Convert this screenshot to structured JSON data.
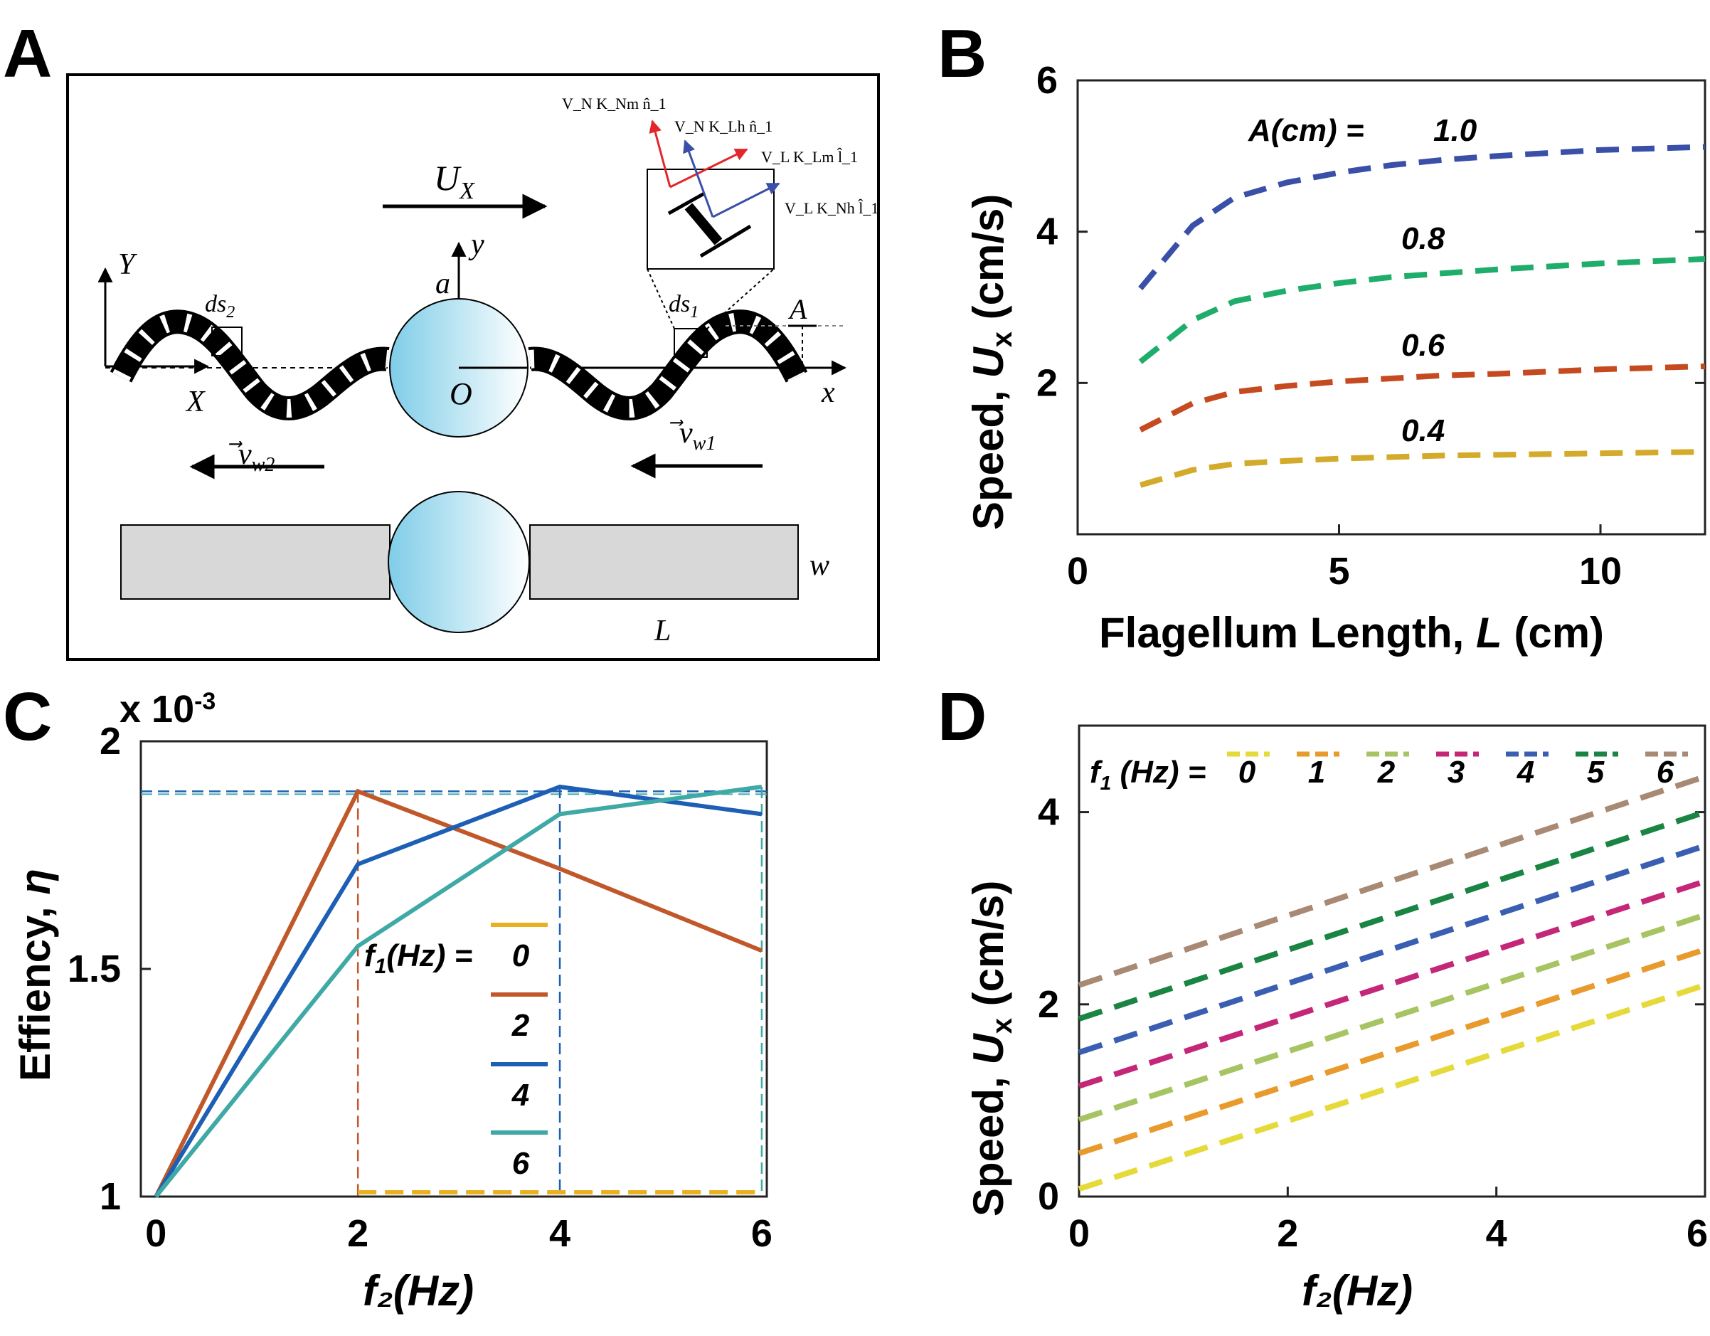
{
  "panel_labels": {
    "a": "A",
    "b": "B",
    "c": "C",
    "d": "D"
  },
  "diagram": {
    "velocity": "U",
    "velocity_sub": "X",
    "frame_X": "X",
    "frame_Y": "Y",
    "frame_x": "x",
    "frame_y": "y",
    "origin": "O",
    "radius": "a",
    "amplitude": "A",
    "ds1": "ds",
    "ds1_sub": "1",
    "ds2": "ds",
    "ds2_sub": "2",
    "vw1": "v",
    "vw1_sub": "w1",
    "vw2": "v",
    "vw2_sub": "w2",
    "width": "w",
    "length": "L",
    "vec1": "V_N K_Nm n̂_1",
    "vec2": "V_N K_Lh n̂_1",
    "vec3": "V_L K_Lm l̂_1",
    "vec4": "V_L K_Nh l̂_1",
    "colors": {
      "body": "#7fcde8",
      "rect": "#d8d8d8",
      "red": "#e3262b",
      "blue": "#3b4fa8"
    }
  },
  "chart_data": [
    {
      "id": "B",
      "type": "line",
      "xlabel": "Flagellum Length, ",
      "xlabel_var": "L",
      "xlabel_unit": " (cm)",
      "ylabel": "Speed, ",
      "ylabel_var": "U",
      "ylabel_sub": "x",
      "ylabel_unit": " (cm/s)",
      "xlim": [
        0,
        12
      ],
      "ylim": [
        0,
        6
      ],
      "xticks": [
        "0",
        "5",
        "10"
      ],
      "yticks": [
        "2",
        "4",
        "6"
      ],
      "legend_title": "A(cm) = ",
      "x": [
        1.2,
        2.2,
        3,
        4,
        5,
        6,
        7,
        8,
        9,
        10,
        11,
        12
      ],
      "series": [
        {
          "name": "1.0",
          "color": "#3a4fa8",
          "values": [
            3.25,
            4.08,
            4.45,
            4.65,
            4.78,
            4.88,
            4.95,
            5.0,
            5.04,
            5.08,
            5.1,
            5.12
          ]
        },
        {
          "name": "0.8",
          "color": "#1fad6b",
          "values": [
            2.28,
            2.83,
            3.08,
            3.22,
            3.32,
            3.4,
            3.45,
            3.5,
            3.54,
            3.58,
            3.61,
            3.64
          ]
        },
        {
          "name": "0.6",
          "color": "#c64a1f",
          "values": [
            1.38,
            1.73,
            1.88,
            1.96,
            2.02,
            2.06,
            2.1,
            2.12,
            2.15,
            2.18,
            2.2,
            2.22
          ]
        },
        {
          "name": "0.4",
          "color": "#d4aa2a",
          "values": [
            0.65,
            0.85,
            0.93,
            0.97,
            1.0,
            1.02,
            1.04,
            1.05,
            1.06,
            1.07,
            1.08,
            1.09
          ]
        }
      ]
    },
    {
      "id": "C",
      "type": "line",
      "xlabel": "f₂(Hz)",
      "ylabel": "Effiency, ",
      "ylabel_var": "η",
      "scale_label": "x 10",
      "scale_exp": "-3",
      "xlim": [
        -0.15,
        6.05
      ],
      "ylim": [
        1,
        2
      ],
      "xticks": [
        "0",
        "2",
        "4",
        "6"
      ],
      "yticks": [
        "1",
        "1.5",
        "2"
      ],
      "legend_title": "f",
      "legend_title_sub": "1",
      "legend_title_tail": "(Hz) = ",
      "x": [
        0,
        2,
        4,
        6
      ],
      "series": [
        {
          "name": "0",
          "color": "#e9b122",
          "values": [
            1.0,
            1.0,
            1.0,
            1.0
          ]
        },
        {
          "name": "2",
          "color": "#c0582a",
          "values": [
            1.0,
            1.89,
            1.72,
            1.54
          ]
        },
        {
          "name": "4",
          "color": "#1d5fb5",
          "values": [
            1.0,
            1.73,
            1.9,
            1.84
          ]
        },
        {
          "name": "6",
          "color": "#3fa9a6",
          "values": [
            1.0,
            1.55,
            1.84,
            1.9
          ]
        }
      ],
      "ref_level": 1.89
    },
    {
      "id": "D",
      "type": "line",
      "xlabel": "f₂(Hz)",
      "ylabel": "Speed, ",
      "ylabel_var": "U",
      "ylabel_sub": "x",
      "ylabel_unit": " (cm/s)",
      "xlim": [
        0,
        6
      ],
      "ylim": [
        0,
        4.9
      ],
      "xticks": [
        "0",
        "2",
        "4",
        "6"
      ],
      "yticks": [
        "0",
        "2",
        "4"
      ],
      "legend_title": "f",
      "legend_title_sub": "1",
      "legend_title_tail": " (Hz) = ",
      "x": [
        0,
        6
      ],
      "series": [
        {
          "name": "0",
          "color": "#e6d93a",
          "values": [
            0.08,
            2.2
          ]
        },
        {
          "name": "1",
          "color": "#e89a2c",
          "values": [
            0.45,
            2.57
          ]
        },
        {
          "name": "2",
          "color": "#a7c463",
          "values": [
            0.8,
            2.93
          ]
        },
        {
          "name": "3",
          "color": "#c42778",
          "values": [
            1.15,
            3.28
          ]
        },
        {
          "name": "4",
          "color": "#3a5fb2",
          "values": [
            1.5,
            3.65
          ]
        },
        {
          "name": "5",
          "color": "#1a8442",
          "values": [
            1.85,
            4.0
          ]
        },
        {
          "name": "6",
          "color": "#a88a74",
          "values": [
            2.2,
            4.37
          ]
        }
      ]
    }
  ]
}
